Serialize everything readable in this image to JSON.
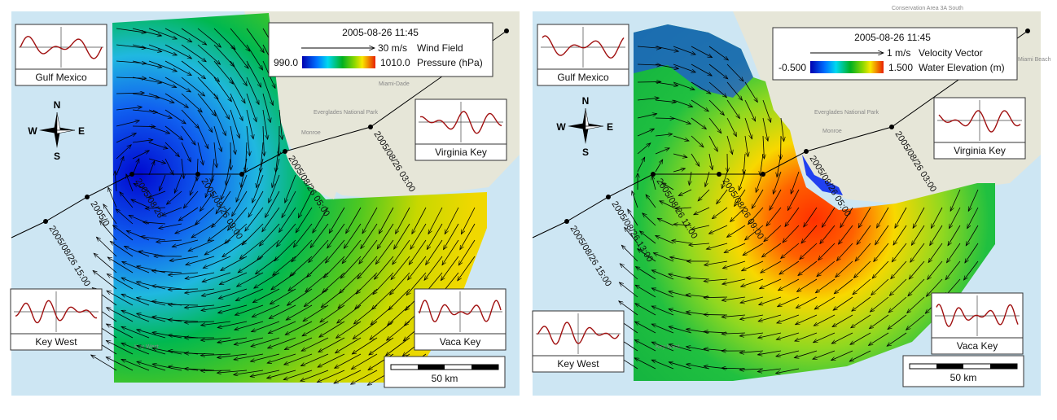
{
  "panels": [
    {
      "id": "wind",
      "legend": {
        "time": "2005-08-26 11:45",
        "vector_value": "30 m/s",
        "vector_label": "Wind Field",
        "min": "990.0",
        "max": "1010.0",
        "color_label": "Pressure (hPa)"
      },
      "stations": [
        "Gulf Mexico",
        "Virginia Key",
        "Key West",
        "Vaca Key"
      ],
      "track_labels": [
        "2005/08/26 15:00",
        "2005/0",
        "2005/08/26",
        "2005/08/26 09:00",
        "2005/08/26 05:00",
        "2005/08/26 03:00"
      ],
      "scale": "50 km"
    },
    {
      "id": "water",
      "legend": {
        "time": "2005-08-26 11:45",
        "vector_value": "1 m/s",
        "vector_label": "Velocity Vector",
        "min": "-0.500",
        "max": "1.500",
        "color_label": "Water Elevation (m)"
      },
      "stations": [
        "Gulf Mexico",
        "Virginia Key",
        "Key West",
        "Vaca Key"
      ],
      "track_labels": [
        "2005/08/26 15:00",
        "2005/08/26 13:00",
        "2005/08/26 11:00",
        "2005/08/26 09:00",
        "2005/08/26 05:00",
        "2005/08/26 03:00"
      ],
      "scale": "50 km"
    }
  ],
  "compass": {
    "n": "N",
    "s": "S",
    "e": "E",
    "w": "W"
  },
  "map_labels": [
    "Monroe",
    "Everglades National Park",
    "Miami-Dade",
    "Key West",
    "Conservation Area 3A South",
    "Miami Beach"
  ],
  "colormap": [
    "#0000c8",
    "#0060ff",
    "#00d8f0",
    "#00c040",
    "#60d000",
    "#f0e000",
    "#ff8000",
    "#e02000"
  ]
}
